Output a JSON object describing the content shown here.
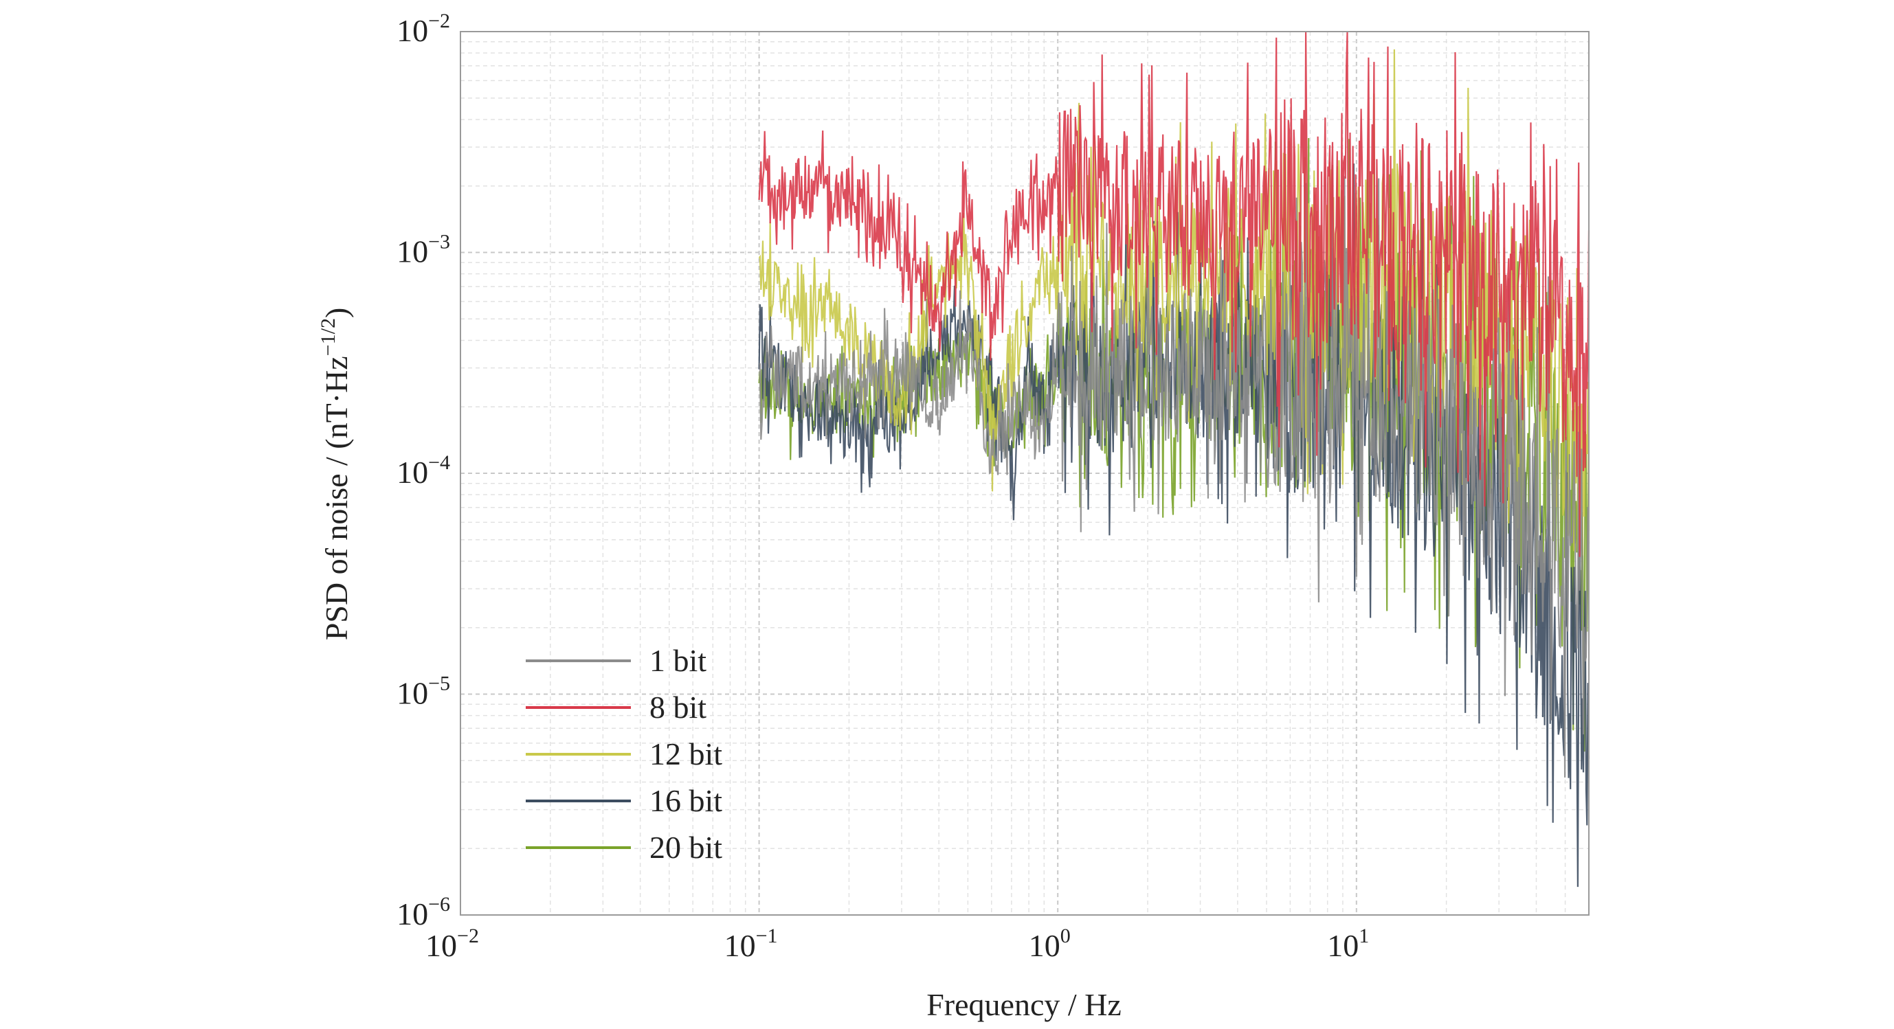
{
  "chart_data": {
    "type": "line",
    "title": "",
    "xlabel": "Frequency / Hz",
    "ylabel_main": "PSD of noise / (nT·Hz",
    "ylabel_sup": "−1/2",
    "ylabel_tail": ")",
    "x_scale": "log",
    "y_scale": "log",
    "xlim": [
      0.01,
      60
    ],
    "ylim": [
      1e-06,
      0.01
    ],
    "grid": true,
    "legend_position": "bottom-left",
    "x_ticks": [
      {
        "value": 0.01,
        "base": "10",
        "exp": "−2"
      },
      {
        "value": 0.1,
        "base": "10",
        "exp": "−1"
      },
      {
        "value": 1,
        "base": "10",
        "exp": "0"
      },
      {
        "value": 10,
        "base": "10",
        "exp": "1"
      }
    ],
    "y_ticks": [
      {
        "value": 0.01,
        "base": "10",
        "exp": "−2"
      },
      {
        "value": 0.001,
        "base": "10",
        "exp": "−3"
      },
      {
        "value": 0.0001,
        "base": "10",
        "exp": "−4"
      },
      {
        "value": 1e-05,
        "base": "10",
        "exp": "−5"
      },
      {
        "value": 1e-06,
        "base": "10",
        "exp": "−6"
      }
    ],
    "series": [
      {
        "name": "1 bit",
        "color": "#8c8c8c",
        "x": [
          0.1,
          0.2,
          0.3,
          0.4,
          0.5,
          0.6,
          0.7,
          0.8,
          0.9,
          1.0,
          1.2,
          1.5,
          2,
          2.5,
          3,
          4,
          5,
          7,
          10,
          15,
          20,
          30,
          40,
          50,
          60
        ],
        "y": [
          0.00028,
          0.00025,
          0.0003,
          0.0002,
          0.00045,
          0.00012,
          0.00018,
          0.0002,
          0.00015,
          0.00035,
          0.00025,
          0.0003,
          0.00028,
          0.0003,
          0.00032,
          0.00028,
          0.0003,
          0.00032,
          0.0003,
          0.00022,
          0.00018,
          0.00012,
          8e-05,
          5e-05,
          4e-05
        ]
      },
      {
        "name": "8 bit",
        "color": "#d93a4a",
        "x": [
          0.1,
          0.2,
          0.3,
          0.4,
          0.5,
          0.6,
          0.7,
          0.8,
          0.9,
          1.0,
          1.2,
          1.5,
          2,
          2.5,
          3,
          4,
          5,
          7,
          10,
          15,
          20,
          30,
          40,
          50,
          60
        ],
        "y": [
          0.002,
          0.0018,
          0.001,
          0.00055,
          0.0016,
          0.00045,
          0.0013,
          0.0017,
          0.0016,
          0.002,
          0.0023,
          0.0018,
          0.0014,
          0.0017,
          0.0012,
          0.0014,
          0.0016,
          0.0012,
          0.0013,
          0.0011,
          0.0011,
          0.0008,
          0.0006,
          0.0004,
          0.00025
        ]
      },
      {
        "name": "12 bit",
        "color": "#c9c94a",
        "x": [
          0.1,
          0.2,
          0.3,
          0.4,
          0.5,
          0.6,
          0.7,
          0.8,
          0.9,
          1.0,
          1.2,
          1.5,
          2,
          2.5,
          3,
          4,
          5,
          7,
          10,
          15,
          20,
          30,
          40,
          50,
          60
        ],
        "y": [
          0.00085,
          0.00045,
          0.0002,
          0.00085,
          0.00095,
          0.00015,
          0.00035,
          0.0005,
          0.00085,
          0.001,
          0.0012,
          0.0009,
          0.0008,
          0.00085,
          0.0008,
          0.00085,
          0.0009,
          0.0008,
          0.00075,
          0.00065,
          0.0006,
          0.00045,
          0.0003,
          0.00018,
          0.00012
        ]
      },
      {
        "name": "16 bit",
        "color": "#3d4d60",
        "x": [
          0.1,
          0.2,
          0.3,
          0.4,
          0.5,
          0.6,
          0.7,
          0.8,
          0.9,
          1.0,
          1.2,
          1.5,
          2,
          2.5,
          3,
          4,
          5,
          7,
          10,
          15,
          20,
          30,
          40,
          50,
          60
        ],
        "y": [
          0.00032,
          0.00015,
          0.00018,
          0.0004,
          0.00048,
          0.00025,
          0.0001,
          0.0003,
          0.0002,
          0.0004,
          0.0003,
          0.00025,
          0.0003,
          0.00035,
          0.0003,
          0.00028,
          0.0003,
          0.00027,
          0.00025,
          0.00018,
          0.00012,
          6e-05,
          2.5e-05,
          1.2e-05,
          8e-06
        ]
      },
      {
        "name": "20 bit",
        "color": "#7aa32a",
        "x": [
          0.1,
          0.2,
          0.3,
          0.4,
          0.5,
          0.6,
          0.7,
          0.8,
          0.9,
          1.0,
          1.2,
          1.5,
          2,
          2.5,
          3,
          4,
          5,
          7,
          10,
          15,
          20,
          30,
          40,
          50,
          60
        ],
        "y": [
          0.00023,
          0.0002,
          0.00025,
          0.0003,
          0.00035,
          0.0002,
          0.00015,
          0.00025,
          0.0002,
          0.0003,
          0.00028,
          0.00025,
          0.00028,
          0.0003,
          0.0003,
          0.00028,
          0.0003,
          0.0003,
          0.0003,
          0.00025,
          0.00022,
          0.00016,
          0.00011,
          8e-05,
          6e-05
        ]
      }
    ]
  }
}
